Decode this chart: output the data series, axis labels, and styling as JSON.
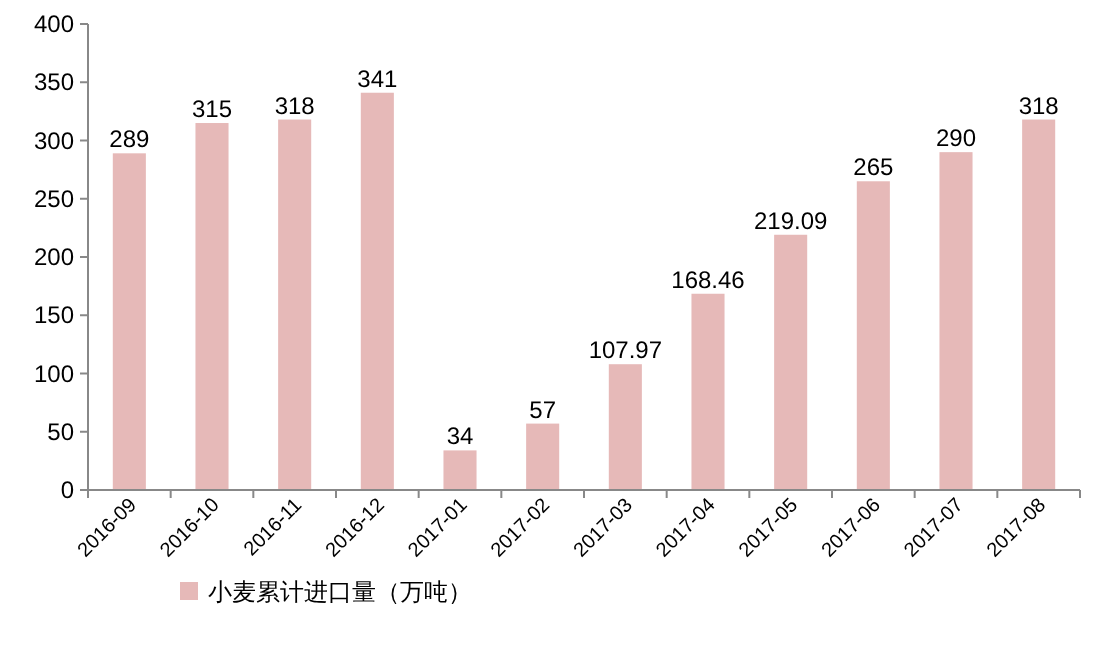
{
  "chart_data": {
    "type": "bar",
    "categories": [
      "2016-09",
      "2016-10",
      "2016-11",
      "2016-12",
      "2017-01",
      "2017-02",
      "2017-03",
      "2017-04",
      "2017-05",
      "2017-06",
      "2017-07",
      "2017-08"
    ],
    "series": [
      {
        "name": "小麦累计进口量（万吨）",
        "color": "#e6b9b8",
        "values": [
          289,
          315,
          318,
          341,
          34,
          57,
          107.97,
          168.46,
          219.09,
          265,
          290,
          318
        ]
      }
    ],
    "ylim": [
      0,
      400
    ],
    "yticks": [
      0,
      50,
      100,
      150,
      200,
      250,
      300,
      350,
      400
    ],
    "data_labels": true,
    "legend": "bottom left"
  }
}
